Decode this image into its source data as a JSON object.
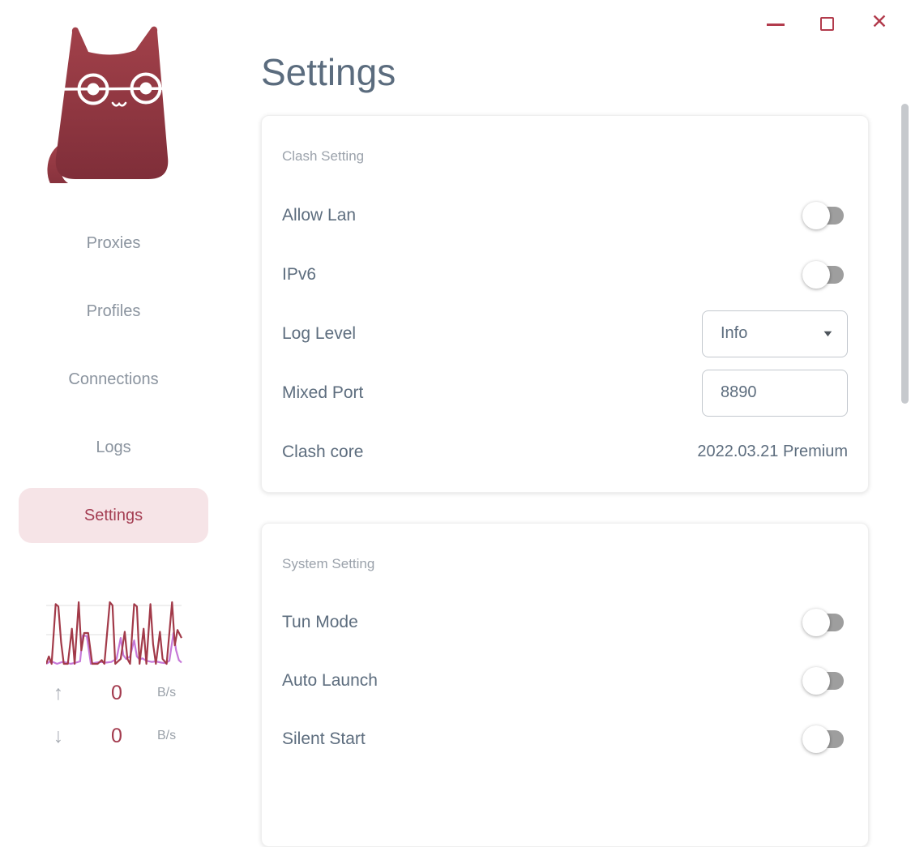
{
  "page": {
    "title": "Settings"
  },
  "icons": {
    "close": "✕",
    "upload_arrow": "↑",
    "download_arrow": "↓",
    "dropdown_caret": "▼"
  },
  "sidebar": {
    "nav": [
      {
        "label": "Proxies",
        "active": false
      },
      {
        "label": "Profiles",
        "active": false
      },
      {
        "label": "Connections",
        "active": false
      },
      {
        "label": "Logs",
        "active": false
      },
      {
        "label": "Settings",
        "active": true
      }
    ],
    "traffic": {
      "up_value": "0",
      "up_unit": "B/s",
      "down_value": "0",
      "down_unit": "B/s"
    }
  },
  "cards": [
    {
      "section": "Clash Setting",
      "rows": [
        {
          "label": "Allow Lan",
          "control": "toggle",
          "state": false
        },
        {
          "label": "IPv6",
          "control": "toggle",
          "state": false
        },
        {
          "label": "Log Level",
          "control": "select",
          "value": "Info"
        },
        {
          "label": "Mixed Port",
          "control": "input",
          "value": "8890"
        },
        {
          "label": "Clash core",
          "control": "text",
          "value": "2022.03.21 Premium"
        }
      ]
    },
    {
      "section": "System Setting",
      "rows": [
        {
          "label": "Tun Mode",
          "control": "toggle",
          "state": false
        },
        {
          "label": "Auto Launch",
          "control": "toggle",
          "state": false
        },
        {
          "label": "Silent Start",
          "control": "toggle",
          "state": false
        }
      ]
    }
  ],
  "traffic_chart": {
    "type": "line",
    "ylim": [
      0,
      100
    ],
    "grid": true,
    "series": [
      {
        "name": "series-red",
        "color": "#a23a49",
        "points": [
          [
            0,
            0
          ],
          [
            2,
            12
          ],
          [
            4,
            0
          ],
          [
            7,
            97
          ],
          [
            9,
            93
          ],
          [
            11,
            35
          ],
          [
            13,
            0
          ],
          [
            16,
            0
          ],
          [
            19,
            57
          ],
          [
            21,
            0
          ],
          [
            24,
            100
          ],
          [
            26,
            22
          ],
          [
            28,
            50
          ],
          [
            31,
            50
          ],
          [
            34,
            0
          ],
          [
            38,
            0
          ],
          [
            41,
            6
          ],
          [
            43,
            0
          ],
          [
            47,
            100
          ],
          [
            49,
            95
          ],
          [
            51,
            0
          ],
          [
            55,
            8
          ],
          [
            58,
            52
          ],
          [
            60,
            8
          ],
          [
            62,
            0
          ],
          [
            65,
            97
          ],
          [
            67,
            93
          ],
          [
            69,
            0
          ],
          [
            72,
            57
          ],
          [
            74,
            0
          ],
          [
            77,
            97
          ],
          [
            79,
            32
          ],
          [
            81,
            0
          ],
          [
            84,
            52
          ],
          [
            86,
            8
          ],
          [
            89,
            0
          ],
          [
            93,
            100
          ],
          [
            95,
            30
          ],
          [
            97,
            55
          ],
          [
            100,
            42
          ]
        ]
      },
      {
        "name": "series-purple",
        "color": "#c678d8",
        "points": [
          [
            0,
            0
          ],
          [
            3,
            4
          ],
          [
            5,
            3
          ],
          [
            8,
            0
          ],
          [
            12,
            3
          ],
          [
            15,
            2
          ],
          [
            18,
            0
          ],
          [
            22,
            2
          ],
          [
            25,
            4
          ],
          [
            27,
            46
          ],
          [
            30,
            45
          ],
          [
            33,
            0
          ],
          [
            37,
            2
          ],
          [
            40,
            3
          ],
          [
            44,
            2
          ],
          [
            48,
            3
          ],
          [
            52,
            8
          ],
          [
            55,
            42
          ],
          [
            57,
            14
          ],
          [
            59,
            8
          ],
          [
            62,
            12
          ],
          [
            65,
            38
          ],
          [
            67,
            12
          ],
          [
            69,
            7
          ],
          [
            71,
            9
          ],
          [
            74,
            5
          ],
          [
            78,
            3
          ],
          [
            81,
            4
          ],
          [
            85,
            2
          ],
          [
            88,
            1
          ],
          [
            91,
            5
          ],
          [
            94,
            50
          ],
          [
            96,
            22
          ],
          [
            98,
            6
          ],
          [
            100,
            2
          ]
        ]
      }
    ]
  },
  "colors": {
    "accent": "#b23b4c",
    "active_nav_bg": "#f6e4e7",
    "active_nav_text": "#a43d52",
    "logo_gradient_top": "#a2414a",
    "logo_gradient_bottom": "#7f2e39"
  }
}
